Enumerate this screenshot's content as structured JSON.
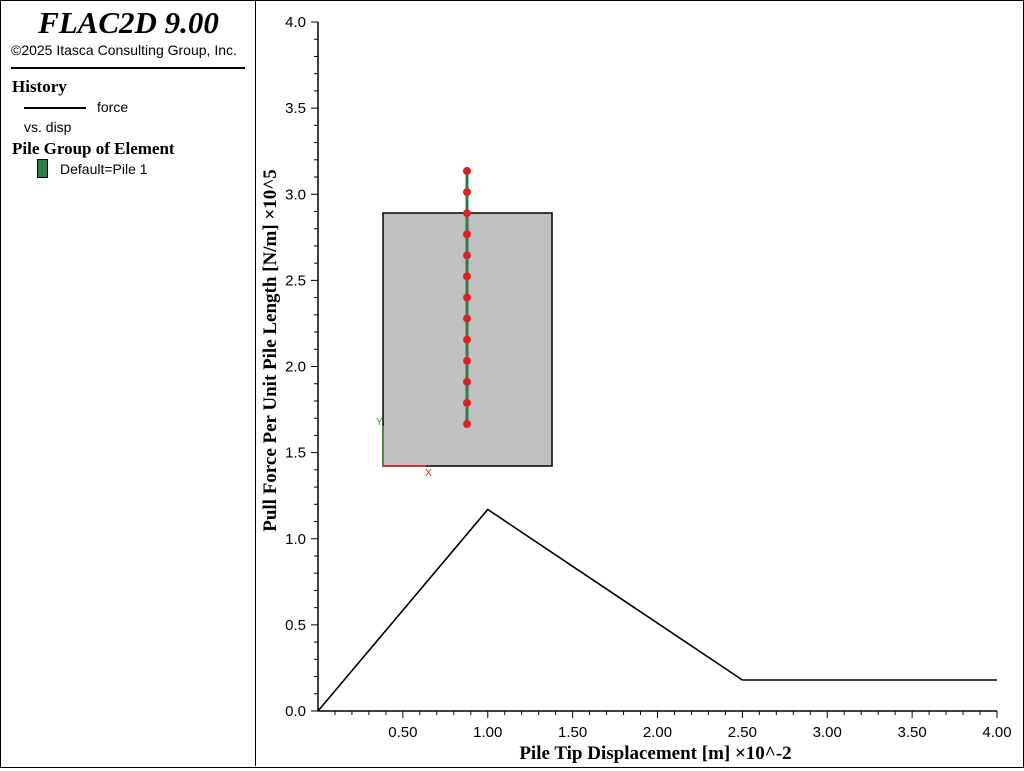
{
  "header": {
    "app_title": "FLAC2D 9.00",
    "copyright": "©2025 Itasca Consulting Group, Inc."
  },
  "legend": {
    "history_heading": "History",
    "history_series": "force",
    "history_vs": "vs. disp",
    "pile_heading": "Pile Group of Element",
    "pile_entry": "Default=Pile 1",
    "pile_color": "#2e7d4a"
  },
  "inset": {
    "x_axis_label": "X",
    "y_axis_label": "Y",
    "model_color": "#c0c0c0",
    "pile_color": "#2e7d4a",
    "node_color": "#e02020",
    "node_count": 13
  },
  "chart_data": {
    "type": "line",
    "xlabel": "Pile Tip Displacement [m] ×10^-2",
    "ylabel": "Pull Force Per Unit Pile Length [N/m] ×10^5",
    "xlim": [
      0,
      4.0
    ],
    "ylim": [
      0,
      4.0
    ],
    "x_ticks": [
      "0.50",
      "1.00",
      "1.50",
      "2.00",
      "2.50",
      "3.00",
      "3.50",
      "4.00"
    ],
    "y_ticks": [
      "0.0",
      "0.5",
      "1.0",
      "1.5",
      "2.0",
      "2.5",
      "3.0",
      "3.5",
      "4.0"
    ],
    "grid": false,
    "series": [
      {
        "name": "force",
        "color": "#000000",
        "x": [
          0.0,
          1.0,
          2.5,
          4.0
        ],
        "y": [
          0.0,
          1.17,
          0.18,
          0.18
        ]
      }
    ]
  }
}
